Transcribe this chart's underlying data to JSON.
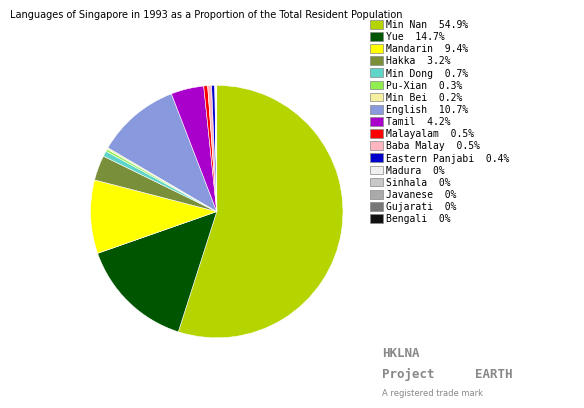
{
  "title": "Languages of Singapore in 1993 as a Proportion of the Total Resident Population",
  "labels": [
    "Min Nan",
    "Yue",
    "Mandarin",
    "Hakka",
    "Min Dong",
    "Pu-Xian",
    "Min Bei",
    "English",
    "Tamil",
    "Malayalam",
    "Baba Malay",
    "Eastern Panjabi",
    "Madura",
    "Sinhala",
    "Javanese",
    "Gujarati",
    "Bengali"
  ],
  "values": [
    54.9,
    14.7,
    9.4,
    3.2,
    0.7,
    0.3,
    0.2,
    10.7,
    4.2,
    0.5,
    0.5,
    0.4,
    0.05,
    0.05,
    0.05,
    0.05,
    0.05
  ],
  "display_values": [
    "54.9%",
    "14.7%",
    "9.4%",
    "3.2%",
    "0.7%",
    "0.3%",
    "0.2%",
    "10.7%",
    "4.2%",
    "0.5%",
    "0.5%",
    "0.4%",
    "0%",
    "0%",
    "0%",
    "0%",
    "0%"
  ],
  "colors": [
    "#b5d400",
    "#005500",
    "#ffff00",
    "#7a8f3a",
    "#5fd4c8",
    "#90ee50",
    "#f5f0a0",
    "#8899dd",
    "#aa00cc",
    "#ff0000",
    "#ffb6c1",
    "#0000cc",
    "#f0f0f0",
    "#c8c8c8",
    "#aaaaaa",
    "#777777",
    "#111111"
  ],
  "startangle": 90,
  "title_fontsize": 7,
  "legend_fontsize": 7,
  "background_color": "#ffffff",
  "watermark_line1": "HKLNA",
  "watermark_line2": "Project",
  "watermark_line3": "EARTH",
  "watermark_line4": "A registered trade mark"
}
